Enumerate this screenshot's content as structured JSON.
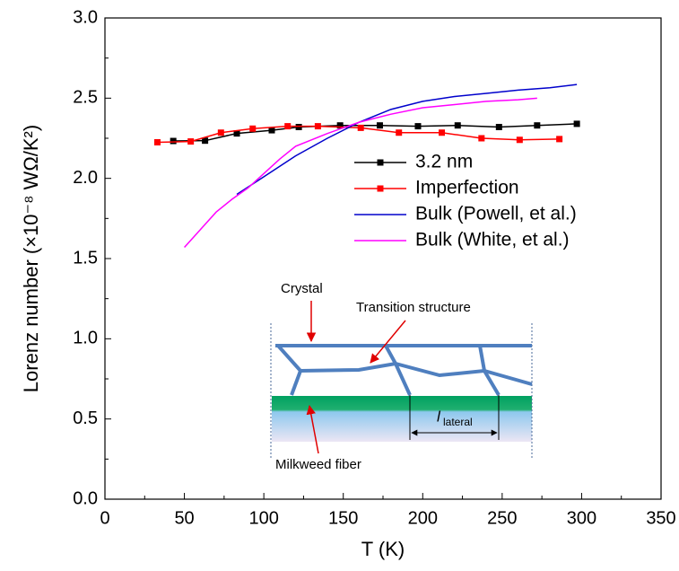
{
  "chart_data": {
    "type": "line",
    "x_label": "T (K)",
    "y_label": "Lorenz number (×10⁻⁸ WΩ/K²)",
    "xlim": [
      0,
      350
    ],
    "xticks": [
      0,
      50,
      100,
      150,
      200,
      250,
      300,
      350
    ],
    "ylim": [
      0,
      3.0
    ],
    "yticks": [
      {
        "value": 0,
        "label": "0.0"
      },
      0.5,
      {
        "value": 1,
        "label": "1.0"
      },
      1.5,
      {
        "value": 2,
        "label": "2.0"
      },
      2.5,
      {
        "value": 3,
        "label": "3.0"
      }
    ],
    "legend": "upper right",
    "series": [
      {
        "name": "3.2 nm",
        "color": "#000000",
        "marker": "square",
        "x": [
          43,
          63,
          83,
          105,
          122,
          148,
          173,
          197,
          222,
          248,
          272,
          297
        ],
        "values": [
          2.233,
          2.235,
          2.28,
          2.3,
          2.32,
          2.33,
          2.33,
          2.325,
          2.33,
          2.32,
          2.33,
          2.34
        ]
      },
      {
        "name": "Imperfection",
        "color": "#ff0000",
        "marker": "square",
        "x": [
          33,
          54,
          73,
          93,
          115,
          134,
          161,
          185,
          212,
          237,
          261,
          286
        ],
        "values": [
          2.225,
          2.23,
          2.285,
          2.31,
          2.325,
          2.325,
          2.315,
          2.285,
          2.285,
          2.25,
          2.24,
          2.245
        ]
      },
      {
        "name": "Bulk (Powell, et al.)",
        "color": "#0000cc",
        "marker": "none",
        "x": [
          83,
          100,
          120,
          140,
          160,
          180,
          200,
          220,
          240,
          260,
          280,
          297
        ],
        "values": [
          1.9,
          2.01,
          2.14,
          2.25,
          2.35,
          2.43,
          2.48,
          2.51,
          2.53,
          2.55,
          2.565,
          2.585
        ]
      },
      {
        "name": "Bulk (White, et al.)",
        "color": "#ff00ff",
        "marker": "none",
        "x": [
          50,
          60,
          70,
          80,
          90,
          100,
          110,
          120,
          140,
          160,
          180,
          200,
          220,
          240,
          260,
          272
        ],
        "values": [
          1.57,
          1.68,
          1.79,
          1.87,
          1.94,
          2.03,
          2.12,
          2.2,
          2.28,
          2.35,
          2.4,
          2.44,
          2.46,
          2.48,
          2.49,
          2.5
        ]
      }
    ],
    "annotations": [
      "Crystal",
      "Transition structure",
      "Milkweed fiber",
      "l",
      "lateral"
    ]
  }
}
